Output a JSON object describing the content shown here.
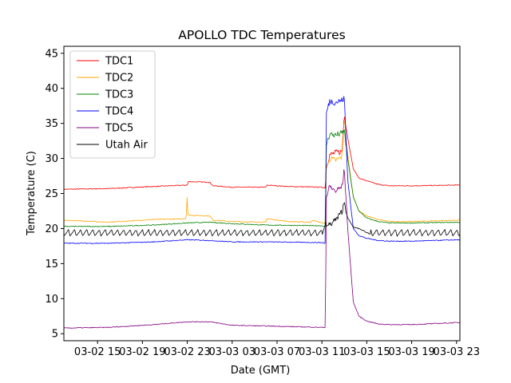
{
  "chart_data": {
    "type": "line",
    "title": "APOLLO TDC Temperatures",
    "xlabel": "Date (GMT)",
    "ylabel": "Temperature (C)",
    "ylim": [
      4.0,
      46.0
    ],
    "xlim": [
      12.0,
      47.3
    ],
    "x_unit": "hours since 03-02 00 GMT",
    "x_ticks": [
      {
        "value": 15,
        "label": "03-02 15"
      },
      {
        "value": 19,
        "label": "03-02 19"
      },
      {
        "value": 23,
        "label": "03-02 23"
      },
      {
        "value": 27,
        "label": "03-03 03"
      },
      {
        "value": 31,
        "label": "03-03 07"
      },
      {
        "value": 35,
        "label": "03-03 11"
      },
      {
        "value": 39,
        "label": "03-03 15"
      },
      {
        "value": 43,
        "label": "03-03 19"
      },
      {
        "value": 47,
        "label": "03-03 23"
      }
    ],
    "y_ticks": [
      5,
      10,
      15,
      20,
      25,
      30,
      35,
      40,
      45
    ],
    "grid": false,
    "legend_position": "top-left",
    "series": [
      {
        "name": "TDC1",
        "color": "#ff0000",
        "x": [
          12.0,
          16.0,
          20.0,
          23.0,
          23.1,
          25.0,
          25.3,
          27.0,
          29.0,
          30.0,
          30.1,
          32.0,
          35.0,
          35.3,
          35.4,
          35.7,
          36.2,
          36.8,
          37.0,
          37.3,
          37.8,
          38.3,
          39.0,
          40.0,
          41.0,
          43.0,
          47.3
        ],
        "y": [
          25.6,
          25.7,
          26.0,
          26.2,
          26.7,
          26.6,
          26.1,
          25.9,
          25.9,
          25.9,
          26.2,
          26.0,
          25.9,
          25.8,
          29.0,
          30.5,
          30.8,
          31.0,
          36.5,
          33.0,
          28.5,
          27.2,
          26.8,
          26.3,
          26.1,
          26.1,
          26.2
        ]
      },
      {
        "name": "TDC2",
        "color": "#ffa500",
        "x": [
          12.0,
          16.0,
          20.0,
          22.9,
          23.0,
          23.05,
          23.2,
          25.0,
          25.3,
          27.0,
          30.0,
          30.1,
          32.0,
          34.0,
          34.1,
          35.3,
          35.4,
          35.7,
          36.2,
          36.8,
          37.0,
          37.3,
          37.8,
          38.3,
          39.0,
          40.0,
          41.0,
          43.0,
          47.3
        ],
        "y": [
          21.2,
          20.9,
          21.3,
          21.4,
          25.2,
          21.9,
          21.9,
          21.8,
          21.2,
          21.0,
          20.9,
          21.4,
          21.0,
          20.9,
          21.2,
          20.7,
          28.5,
          30.0,
          29.7,
          30.2,
          36.0,
          30.5,
          24.5,
          22.5,
          21.8,
          21.3,
          21.0,
          21.0,
          21.2
        ]
      },
      {
        "name": "TDC3",
        "color": "#008000",
        "x": [
          12.0,
          16.0,
          20.0,
          23.0,
          25.0,
          27.0,
          30.0,
          35.0,
          35.3,
          35.4,
          35.7,
          36.2,
          36.8,
          37.0,
          37.3,
          37.8,
          38.3,
          39.0,
          40.0,
          41.0,
          43.0,
          47.3
        ],
        "y": [
          20.3,
          20.3,
          20.5,
          20.8,
          20.9,
          20.7,
          20.5,
          20.4,
          20.3,
          32.0,
          33.5,
          33.3,
          33.6,
          34.0,
          30.0,
          24.5,
          22.5,
          21.5,
          21.0,
          20.8,
          20.8,
          20.9
        ]
      },
      {
        "name": "TDC4",
        "color": "#0000ff",
        "x": [
          12.0,
          16.0,
          20.0,
          23.0,
          25.0,
          27.0,
          30.0,
          35.0,
          35.3,
          35.4,
          35.7,
          36.2,
          36.8,
          37.0,
          37.3,
          37.8,
          38.3,
          39.0,
          40.0,
          41.0,
          43.0,
          47.3
        ],
        "y": [
          17.9,
          17.9,
          18.1,
          18.4,
          18.3,
          18.1,
          18.1,
          18.0,
          17.9,
          36.5,
          38.2,
          38.0,
          38.3,
          38.6,
          27.0,
          20.0,
          19.0,
          18.6,
          18.3,
          18.2,
          18.2,
          18.4
        ]
      },
      {
        "name": "TDC5",
        "color": "#800080",
        "x": [
          12.0,
          16.0,
          20.0,
          23.0,
          25.0,
          27.0,
          30.0,
          35.0,
          35.3,
          35.4,
          35.7,
          36.2,
          36.8,
          37.0,
          37.3,
          37.8,
          38.3,
          39.0,
          40.0,
          41.0,
          43.0,
          47.3
        ],
        "y": [
          5.8,
          5.9,
          6.3,
          6.7,
          6.7,
          6.2,
          6.1,
          5.9,
          5.9,
          24.5,
          26.0,
          25.3,
          26.0,
          28.5,
          20.0,
          9.5,
          7.5,
          6.8,
          6.4,
          6.3,
          6.3,
          6.6
        ]
      },
      {
        "name": "Utah Air",
        "color": "#000000",
        "sawtooth": {
          "amplitude": 0.9,
          "period_hours": 0.55,
          "baseline": 19.4
        },
        "x": [
          12.0,
          34.9,
          35.0,
          35.3,
          35.6,
          36.0,
          36.4,
          36.8,
          37.0,
          37.3,
          37.8,
          38.3,
          38.8,
          39.3,
          40.0,
          47.3
        ],
        "y": [
          19.4,
          19.4,
          19.0,
          20.5,
          20.4,
          21.0,
          21.5,
          22.5,
          23.8,
          21.5,
          20.2,
          20.0,
          19.6,
          19.2,
          19.4,
          19.4
        ]
      }
    ]
  }
}
